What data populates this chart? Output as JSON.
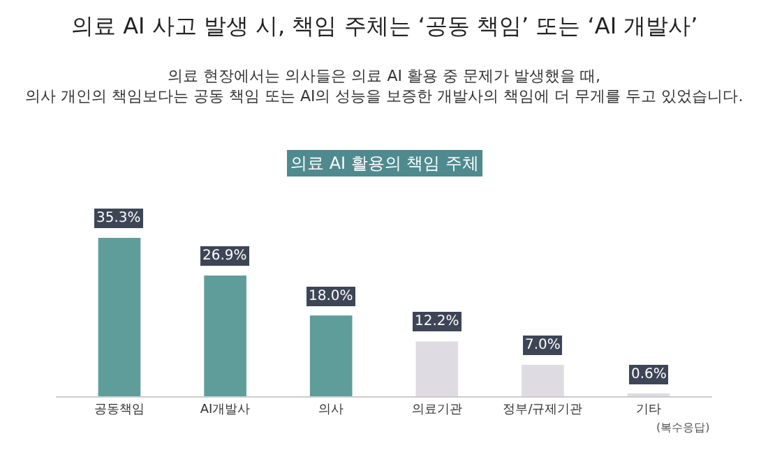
{
  "chart_data": {
    "type": "bar",
    "title": "의료 AI 사고 발생 시, 책임 주체는 ‘공동 책임’ 또는 ‘AI 개발사’",
    "subtitle": "의료 현장에서는 의사들은 의료 AI 활용 중 문제가 발생했을 때,\n의사 개인의 책임보다는 공동 책임 또는 AI의 성능을 보증한 개발사의 책임에 더 무게를 두고 있었습니다.",
    "categories": [
      "공동책임",
      "AI개발사",
      "의사",
      "의료기관",
      "정부/규제기관",
      "기타"
    ],
    "values": [
      35.3,
      26.9,
      18.0,
      12.2,
      7.0,
      0.6
    ],
    "value_labels": [
      "35.3%",
      "26.9%",
      "18.0%",
      "12.2%",
      "7.0%",
      "0.6%"
    ],
    "colors": [
      "#5f9d9a",
      "#5f9d9a",
      "#5f9d9a",
      "#dedce2",
      "#dedce2",
      "#dedce2"
    ],
    "annotations": [
      "의료 AI 활용의 책임 주체",
      "(복수응답)"
    ],
    "legend": false
  }
}
